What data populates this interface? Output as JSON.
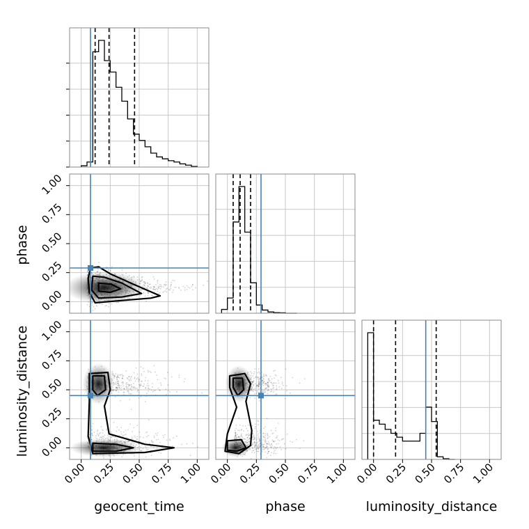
{
  "chart_data": {
    "type": "corner",
    "parameters": [
      "geocent_time",
      "phase",
      "luminosity_distance"
    ],
    "axis_range": [
      -0.1,
      1.1
    ],
    "tick_labels": [
      "0.00",
      "0.25",
      "0.50",
      "0.75",
      "1.00"
    ],
    "tick_values": [
      0,
      0.25,
      0.5,
      0.75,
      1.0
    ],
    "grid": true,
    "truth_values": {
      "geocent_time": 0.08,
      "phase": 0.29,
      "luminosity_distance": 0.45
    },
    "colors": {
      "truth": "#4682b4",
      "histogram": "#000000",
      "grid": "#c8c8c8"
    },
    "histograms": {
      "geocent_time": {
        "edges": [
          0.0,
          0.05,
          0.1,
          0.15,
          0.2,
          0.25,
          0.3,
          0.35,
          0.4,
          0.45,
          0.5,
          0.55,
          0.6,
          0.65,
          0.7,
          0.75,
          0.8,
          0.85,
          0.9,
          0.95,
          1.0
        ],
        "counts": [
          0.01,
          0.04,
          0.91,
          1.0,
          0.84,
          0.75,
          0.63,
          0.52,
          0.38,
          0.26,
          0.21,
          0.16,
          0.11,
          0.08,
          0.065,
          0.05,
          0.04,
          0.025,
          0.015,
          0.005
        ],
        "quantiles": [
          0.12,
          0.24,
          0.46
        ]
      },
      "phase": {
        "edges": [
          -0.05,
          0.0,
          0.05,
          0.1,
          0.15,
          0.2,
          0.25,
          0.3,
          0.35,
          0.4,
          0.45,
          0.5,
          0.55,
          0.6
        ],
        "counts": [
          0.03,
          0.12,
          0.72,
          1.0,
          0.64,
          0.24,
          0.065,
          0.025,
          0.01,
          0.005,
          0.003,
          0.0,
          0.0
        ],
        "quantiles": [
          0.05,
          0.11,
          0.2
        ]
      },
      "luminosity_distance": {
        "edges": [
          -0.05,
          0.0,
          0.05,
          0.1,
          0.15,
          0.2,
          0.25,
          0.3,
          0.35,
          0.4,
          0.45,
          0.5,
          0.55,
          0.6,
          0.65,
          0.7
        ],
        "counts": [
          0.97,
          0.3,
          0.27,
          0.23,
          0.2,
          0.17,
          0.14,
          0.14,
          0.14,
          0.2,
          0.4,
          0.29,
          0.02,
          0.005,
          0.0
        ],
        "quantiles": [
          0.0,
          0.19,
          0.54
        ]
      }
    }
  }
}
